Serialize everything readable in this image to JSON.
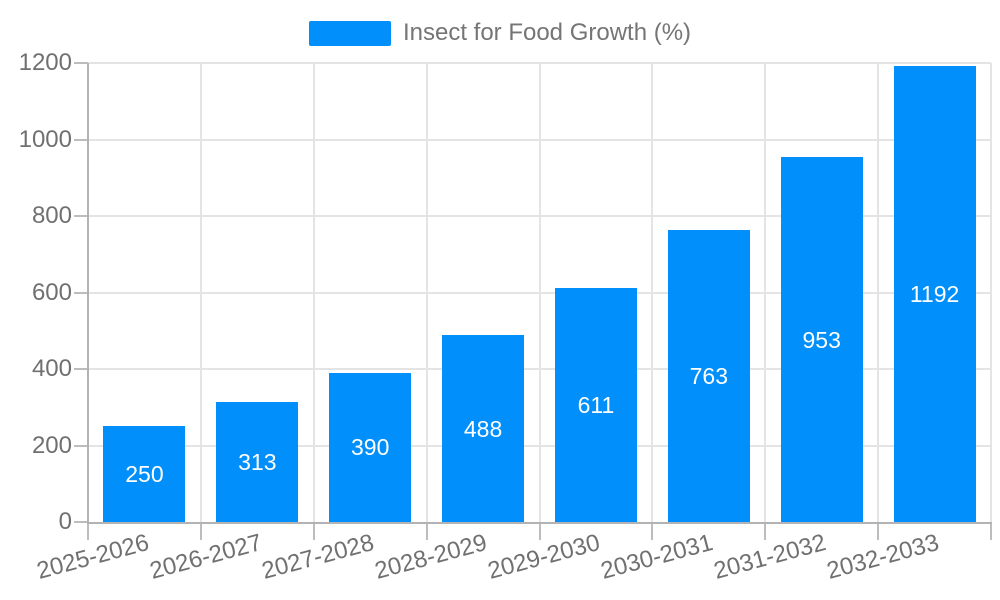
{
  "legend": {
    "label": "Insect for Food Growth (%)"
  },
  "colors": {
    "bar": "#008FFB",
    "grid": "#e4e4e4",
    "axis": "#b3b3b3",
    "tick": "#bdbdbd",
    "tick_label": "#707070",
    "value_label": "#ffffff",
    "background": "#ffffff"
  },
  "chart_data": {
    "type": "bar",
    "title": "Insect for Food Growth (%)",
    "categories": [
      "2025-2026",
      "2026-2027",
      "2027-2028",
      "2028-2029",
      "2029-2030",
      "2030-2031",
      "2031-2032",
      "2032-2033"
    ],
    "values": [
      250,
      313,
      390,
      488,
      611,
      763,
      953,
      1192
    ],
    "xlabel": "",
    "ylabel": "",
    "ylim": [
      0,
      1200
    ],
    "yticks": [
      0,
      200,
      400,
      600,
      800,
      1000,
      1200
    ],
    "grid": "on",
    "legend_position": "top",
    "bar_labels_position": "middle",
    "x_label_rotation_deg": -15
  }
}
